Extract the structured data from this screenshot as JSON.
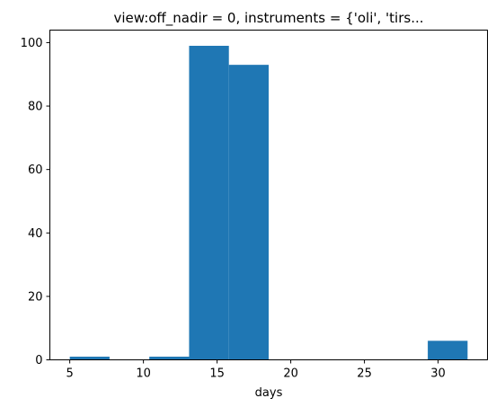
{
  "chart_data": {
    "type": "histogram",
    "title": "view:off_nadir = 0, instruments = {'oli', 'tirs...",
    "xlabel": "days",
    "ylabel": "",
    "xlim": [
      3.65,
      33.35
    ],
    "ylim": [
      0,
      103.95
    ],
    "grid": false,
    "color": "#1f77b4",
    "bins": [
      {
        "x0": 5.0,
        "x1": 7.7,
        "count": 1
      },
      {
        "x0": 7.7,
        "x1": 10.4,
        "count": 0
      },
      {
        "x0": 10.4,
        "x1": 13.1,
        "count": 1
      },
      {
        "x0": 13.1,
        "x1": 15.8,
        "count": 99
      },
      {
        "x0": 15.8,
        "x1": 18.5,
        "count": 93
      },
      {
        "x0": 18.5,
        "x1": 21.2,
        "count": 0
      },
      {
        "x0": 21.2,
        "x1": 23.9,
        "count": 0
      },
      {
        "x0": 23.9,
        "x1": 26.6,
        "count": 0
      },
      {
        "x0": 26.6,
        "x1": 29.3,
        "count": 0
      },
      {
        "x0": 29.3,
        "x1": 32.0,
        "count": 6
      }
    ],
    "xticks": [
      5,
      10,
      15,
      20,
      25,
      30
    ],
    "yticks": [
      0,
      20,
      40,
      60,
      80,
      100
    ]
  }
}
